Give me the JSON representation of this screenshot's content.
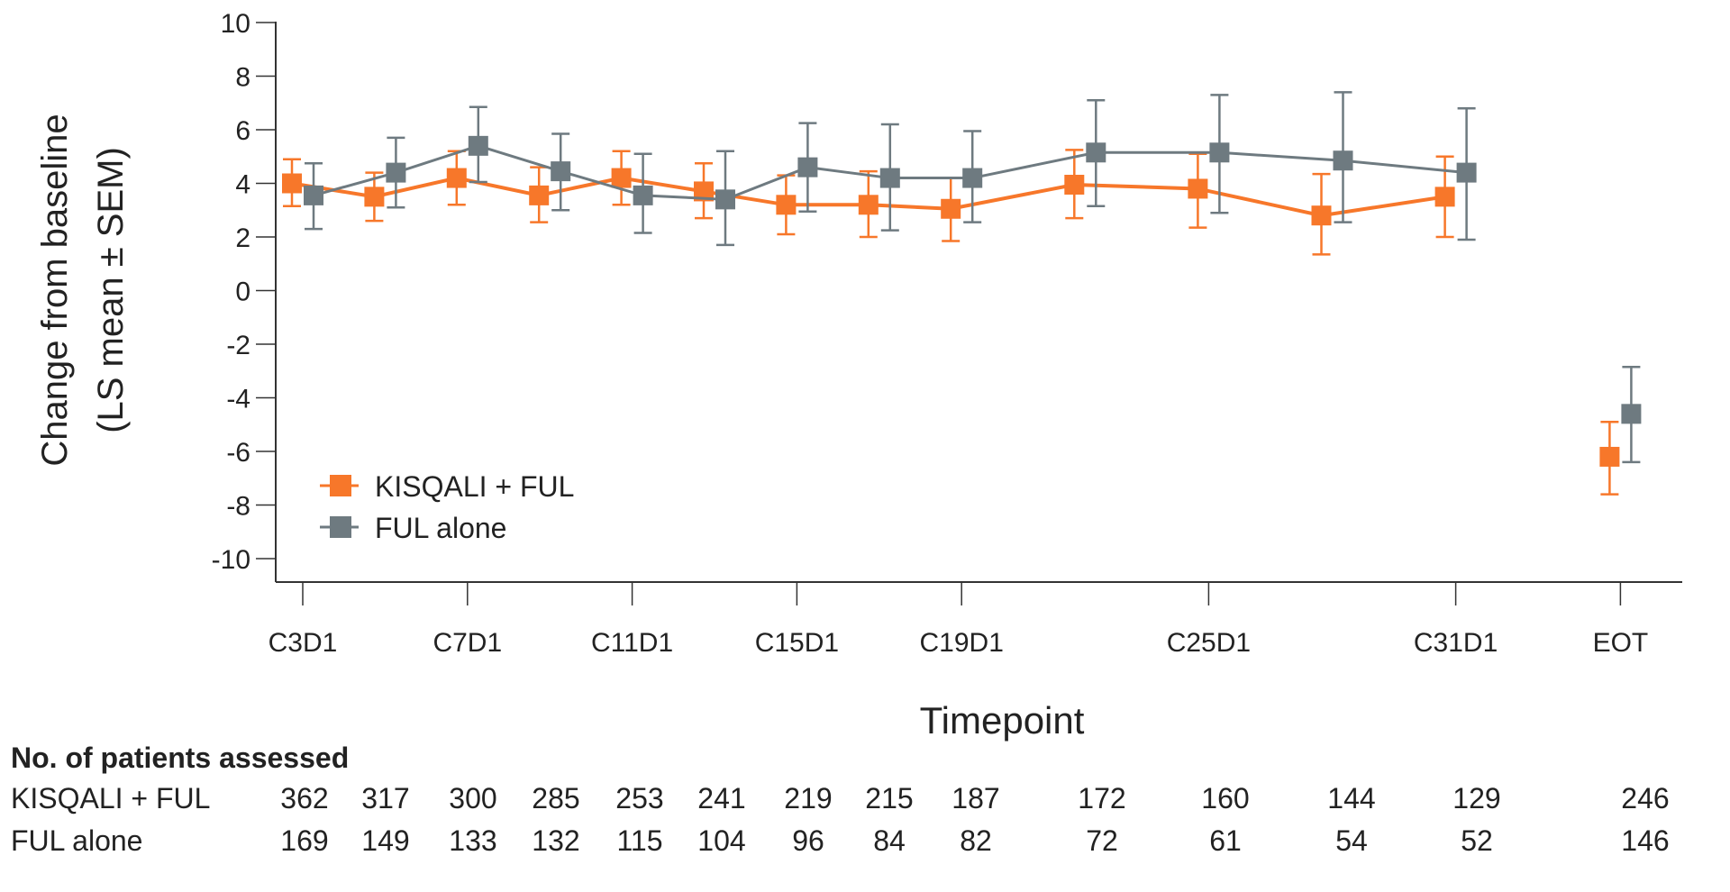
{
  "chart_data": {
    "type": "line",
    "ylabel_lines": [
      "Change from baseline",
      "(LS mean ± SEM)"
    ],
    "xlabel": "Timepoint",
    "ylim": [
      -10,
      10
    ],
    "yticks": [
      10,
      8,
      6,
      4,
      2,
      0,
      -2,
      -4,
      -6,
      -8,
      -10
    ],
    "grid": false,
    "legend_placement": "bottom-left",
    "x_tick_labels": [
      {
        "label": "C3D1",
        "cycle": 3
      },
      {
        "label": "C7D1",
        "cycle": 7
      },
      {
        "label": "C11D1",
        "cycle": 11
      },
      {
        "label": "C15D1",
        "cycle": 15
      },
      {
        "label": "C19D1",
        "cycle": 19
      },
      {
        "label": "C25D1",
        "cycle": 25
      },
      {
        "label": "C31D1",
        "cycle": 31
      },
      {
        "label": "EOT",
        "cycle": 35
      }
    ],
    "timepoints": [
      3,
      5,
      7,
      9,
      11,
      13,
      15,
      17,
      19,
      22,
      25,
      28,
      31,
      35
    ],
    "connected_until_index": 12,
    "series": [
      {
        "name": "KISQALI + FUL",
        "color": "#f7772a",
        "values": [
          4.0,
          3.5,
          4.2,
          3.55,
          4.2,
          3.7,
          3.2,
          3.2,
          3.05,
          3.95,
          3.8,
          2.8,
          3.5,
          -6.2
        ],
        "upper": [
          4.9,
          4.4,
          5.2,
          4.6,
          5.2,
          4.75,
          4.3,
          4.45,
          4.2,
          5.25,
          5.1,
          4.35,
          5.0,
          -4.9
        ],
        "lower": [
          3.15,
          2.6,
          3.2,
          2.55,
          3.2,
          2.7,
          2.1,
          2.0,
          1.85,
          2.7,
          2.35,
          1.35,
          2.0,
          -7.6
        ]
      },
      {
        "name": "FUL alone",
        "color": "#6e7a80",
        "values": [
          3.55,
          4.4,
          5.4,
          4.45,
          3.55,
          3.4,
          4.6,
          4.2,
          4.2,
          5.15,
          5.15,
          4.85,
          4.4,
          -4.6
        ],
        "upper": [
          4.75,
          5.7,
          6.85,
          5.85,
          5.1,
          5.2,
          6.25,
          6.2,
          5.95,
          7.1,
          7.3,
          7.4,
          6.8,
          -2.85
        ],
        "lower": [
          2.3,
          3.1,
          4.05,
          3.0,
          2.15,
          1.7,
          2.95,
          2.25,
          2.55,
          3.15,
          2.9,
          2.55,
          1.9,
          -6.4
        ]
      }
    ]
  },
  "table": {
    "title": "No. of patients assessed",
    "rows": [
      {
        "label": "KISQALI + FUL",
        "values": [
          "362",
          "317",
          "300",
          "285",
          "253",
          "241",
          "219",
          "215",
          "187",
          "172",
          "160",
          "144",
          "129",
          "246"
        ]
      },
      {
        "label": "FUL alone",
        "values": [
          "169",
          "149",
          "133",
          "132",
          "115",
          "104",
          "96",
          "84",
          "82",
          "72",
          "61",
          "54",
          "52",
          "146"
        ]
      }
    ]
  }
}
